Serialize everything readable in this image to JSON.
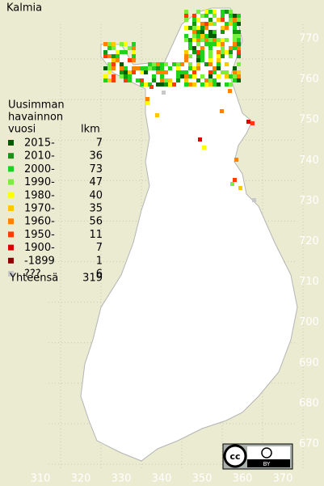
{
  "title": "Kalmia",
  "legend": {
    "header": [
      "Uusimman",
      "havainnon",
      "vuosi"
    ],
    "count_header": "lkm",
    "items": [
      {
        "label": "2015-",
        "count": 7,
        "color": "#005a00"
      },
      {
        "label": "2010-",
        "count": 36,
        "color": "#149614"
      },
      {
        "label": "2000-",
        "count": 73,
        "color": "#1ed21e"
      },
      {
        "label": "1990-",
        "count": 47,
        "color": "#78f03c"
      },
      {
        "label": "1980-",
        "count": 40,
        "color": "#ffff00"
      },
      {
        "label": "1970-",
        "count": 35,
        "color": "#ffc800"
      },
      {
        "label": "1960-",
        "count": 56,
        "color": "#ff8200"
      },
      {
        "label": "1950-",
        "count": 11,
        "color": "#ff3c00"
      },
      {
        "label": "1900-",
        "count": 7,
        "color": "#dc0000"
      },
      {
        "label": "-1899",
        "count": 1,
        "color": "#8c0000"
      },
      {
        "label": "???",
        "count": 6,
        "color": "#c8c8c8"
      }
    ],
    "total_label": "Yhteensä",
    "total": 319
  },
  "map": {
    "xticks": [
      310,
      320,
      330,
      340,
      350,
      360,
      370
    ],
    "yticks": [
      770,
      760,
      750,
      740,
      730,
      720,
      710,
      700,
      690,
      680,
      670
    ]
  },
  "license": {
    "icon": "cc",
    "label": "BY"
  }
}
